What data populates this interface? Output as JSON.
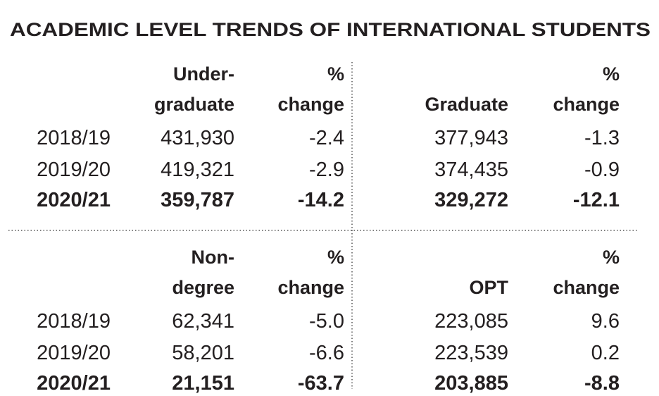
{
  "title": "ACADEMIC LEVEL TRENDS OF INTERNATIONAL STUDENTS",
  "tables": [
    {
      "headers": [
        [
          "Under-",
          "graduate"
        ],
        [
          "%",
          "change"
        ]
      ],
      "rows": [
        [
          "2018/19",
          "431,930",
          "-2.4"
        ],
        [
          "2019/20",
          "419,321",
          "-2.9"
        ],
        [
          "2020/21",
          "359,787",
          "-14.2"
        ]
      ]
    },
    {
      "headers": [
        [
          "Graduate"
        ],
        [
          "%",
          "change"
        ]
      ],
      "rows": [
        [
          "377,943",
          "-1.3"
        ],
        [
          "374,435",
          "-0.9"
        ],
        [
          "329,272",
          "-12.1"
        ]
      ]
    },
    {
      "headers": [
        [
          "Non-",
          "degree"
        ],
        [
          "%",
          "change"
        ]
      ],
      "rows": [
        [
          "2018/19",
          "62,341",
          "-5.0"
        ],
        [
          "2019/20",
          "58,201",
          "-6.6"
        ],
        [
          "2020/21",
          "21,151",
          "-63.7"
        ]
      ]
    },
    {
      "headers": [
        [
          "OPT"
        ],
        [
          "%",
          "change"
        ]
      ],
      "rows": [
        [
          "223,085",
          "9.6"
        ],
        [
          "223,539",
          "0.2"
        ],
        [
          "203,885",
          "-8.8"
        ]
      ]
    }
  ]
}
